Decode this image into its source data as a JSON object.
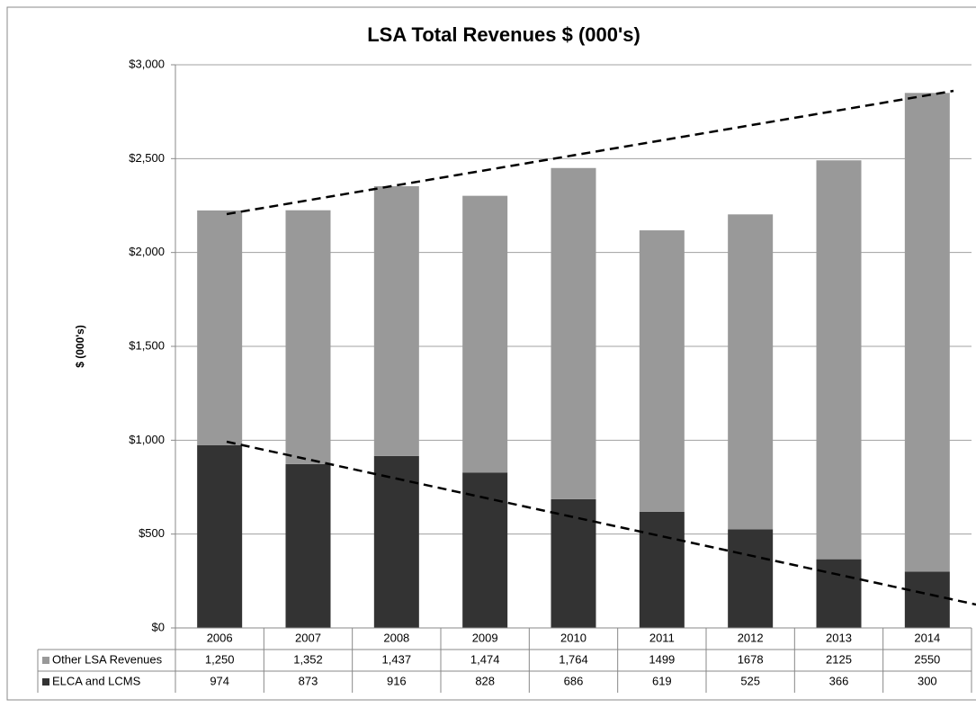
{
  "chart_data": {
    "type": "stacked_bar",
    "title": "LSA Total Revenues $ (000's)",
    "y_label": "$ (000's)",
    "categories": [
      "2006",
      "2007",
      "2008",
      "2009",
      "2010",
      "2011",
      "2012",
      "2013",
      "2014"
    ],
    "series": [
      {
        "name": "ELCA and LCMS",
        "color": "#333333",
        "values": [
          974,
          873,
          916,
          828,
          686,
          619,
          525,
          366,
          300
        ]
      },
      {
        "name": "Other LSA Revenues",
        "color": "#999999",
        "values": [
          1250,
          1352,
          1437,
          1474,
          1764,
          1499,
          1678,
          2125,
          2550
        ],
        "value_labels": [
          "1,250",
          "1,352",
          "1,437",
          "1,474",
          "1,764",
          "1499",
          "1678",
          "2125",
          "2550"
        ]
      }
    ],
    "ylim": [
      0,
      3000
    ],
    "yticks": [
      {
        "value": 0,
        "label": "$0"
      },
      {
        "value": 500,
        "label": "$500"
      },
      {
        "value": 1000,
        "label": "$1,000"
      },
      {
        "value": 1500,
        "label": "$1,500"
      },
      {
        "value": 2000,
        "label": "$2,000"
      },
      {
        "value": 2500,
        "label": "$2,500"
      },
      {
        "value": 3000,
        "label": "$3,000"
      }
    ],
    "grid": true
  }
}
